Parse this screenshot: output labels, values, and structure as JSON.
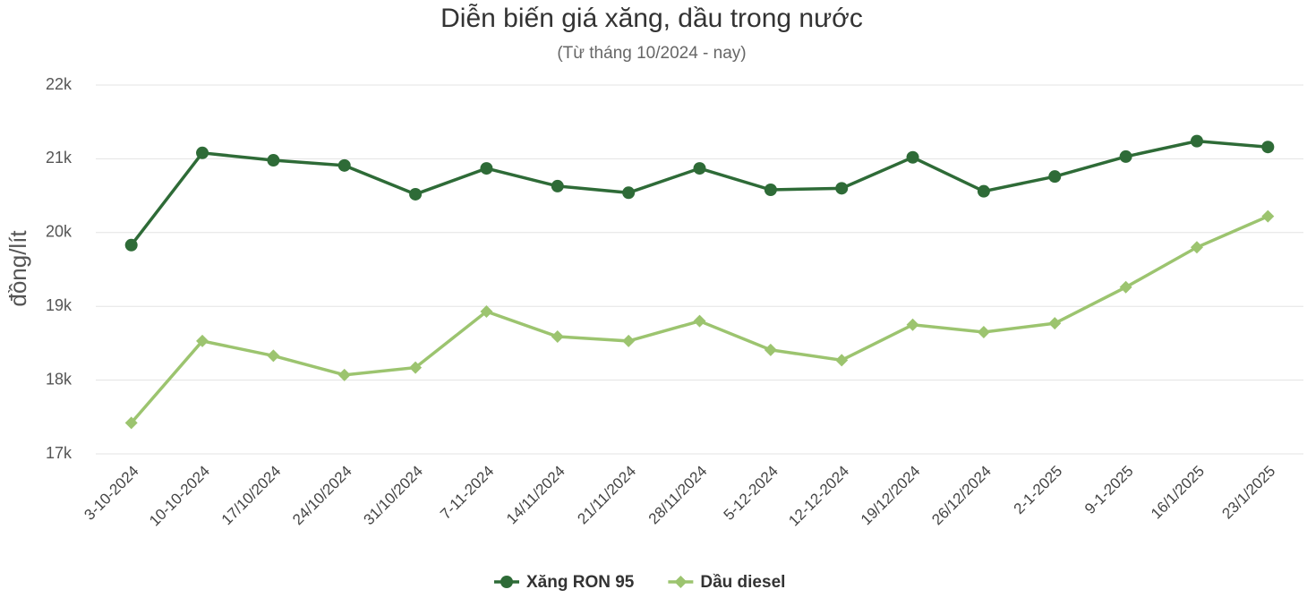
{
  "chart_data": {
    "type": "line",
    "title": "Diễn biến giá xăng, dầu trong nước",
    "subtitle": "(Từ tháng 10/2024 - nay)",
    "y_label": "đồng/lít",
    "categories": [
      "3-10-2024",
      "10-10-2024",
      "17/10/2024",
      "24/10/2024",
      "31/10/2024",
      "7-11-2024",
      "14/11/2024",
      "21/11/2024",
      "28/11/2024",
      "5-12-2024",
      "12-12-2024",
      "19/12/2024",
      "26/12/2024",
      "2-1-2025",
      "9-1-2025",
      "16/1/2025",
      "23/1/2025"
    ],
    "series": [
      {
        "name": "Xăng RON 95",
        "color": "#2e6b37",
        "marker": "circle",
        "values": [
          19830,
          21080,
          20980,
          20910,
          20520,
          20870,
          20630,
          20540,
          20870,
          20580,
          20600,
          21020,
          20560,
          20760,
          21030,
          21240,
          21160
        ]
      },
      {
        "name": "Dầu diesel",
        "color": "#9cc46f",
        "marker": "diamond",
        "values": [
          17420,
          18530,
          18330,
          18070,
          18170,
          18930,
          18590,
          18530,
          18800,
          18410,
          18270,
          18750,
          18650,
          18770,
          19260,
          19800,
          20220
        ]
      }
    ],
    "ylim": [
      17000,
      22000
    ],
    "yticks": [
      {
        "value": 17000,
        "label": "17k"
      },
      {
        "value": 18000,
        "label": "18k"
      },
      {
        "value": 19000,
        "label": "19k"
      },
      {
        "value": 20000,
        "label": "20k"
      },
      {
        "value": 21000,
        "label": "21k"
      },
      {
        "value": 22000,
        "label": "22k"
      }
    ],
    "grid": true,
    "legend": "bottom"
  }
}
